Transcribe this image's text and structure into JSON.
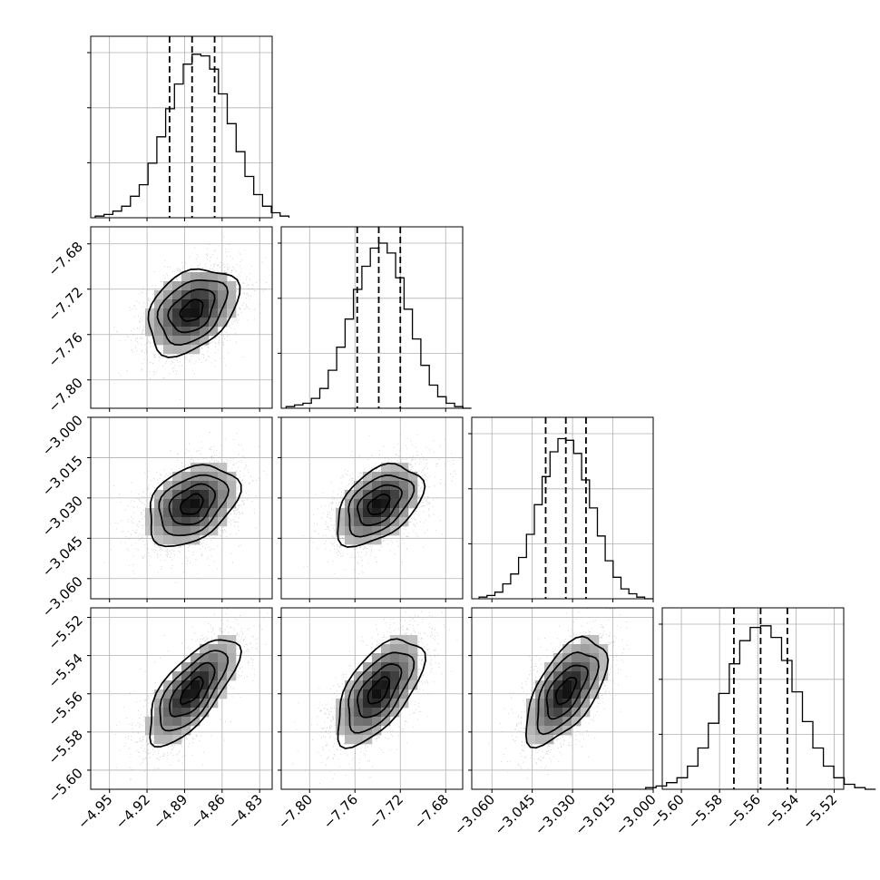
{
  "chart_data": {
    "type": "corner",
    "grid": true,
    "params": [
      {
        "range": [
          -4.965,
          -4.82
        ],
        "ticks": [
          -4.95,
          -4.92,
          -4.89,
          -4.86,
          -4.83
        ],
        "tick_labels": [
          "−4.95",
          "−4.92",
          "−4.89",
          "−4.86",
          "−4.83"
        ],
        "quantiles": [
          -4.902,
          -4.884,
          -4.866
        ],
        "mean": -4.884,
        "sd": 0.018
      },
      {
        "range": [
          -7.825,
          -7.665
        ],
        "ticks": [
          -7.8,
          -7.76,
          -7.72,
          -7.68
        ],
        "tick_labels": [
          "−7.80",
          "−7.76",
          "−7.72",
          "−7.68"
        ],
        "quantiles": [
          -7.758,
          -7.739,
          -7.72
        ],
        "mean": -7.739,
        "sd": 0.019
      },
      {
        "range": [
          -3.0675,
          -3.0
        ],
        "ticks": [
          -3.06,
          -3.045,
          -3.03,
          -3.015,
          -3.0
        ],
        "tick_labels": [
          "−3.060",
          "−3.045",
          "−3.030",
          "−3.015",
          "−3.000"
        ],
        "quantiles": [
          -3.04,
          -3.0325,
          -3.025
        ],
        "mean": -3.0325,
        "sd": 0.0075
      },
      {
        "range": [
          -5.61,
          -5.515
        ],
        "ticks": [
          -5.6,
          -5.58,
          -5.56,
          -5.54,
          -5.52
        ],
        "tick_labels": [
          "−5.60",
          "−5.58",
          "−5.56",
          "−5.54",
          "−5.52"
        ],
        "quantiles": [
          -5.5725,
          -5.5585,
          -5.5445
        ],
        "mean": -5.5585,
        "sd": 0.014
      }
    ],
    "histograms": [
      {
        "param": 0,
        "values": [
          1,
          2,
          4,
          7,
          13,
          20,
          33,
          49,
          66,
          81,
          93,
          99,
          98,
          90,
          75,
          57,
          40,
          25,
          14,
          7,
          3,
          1
        ]
      },
      {
        "param": 1,
        "values": [
          1,
          2,
          3,
          6,
          12,
          23,
          37,
          54,
          72,
          86,
          97,
          100,
          94,
          79,
          60,
          42,
          26,
          14,
          7,
          3,
          1,
          0
        ]
      },
      {
        "param": 2,
        "values": [
          1,
          2,
          4,
          9,
          15,
          25,
          39,
          57,
          74,
          89,
          97,
          96,
          88,
          72,
          55,
          38,
          23,
          13,
          6,
          3,
          1,
          0
        ]
      },
      {
        "param": 3,
        "values": [
          1,
          2,
          4,
          7,
          14,
          25,
          40,
          58,
          76,
          90,
          98,
          99,
          92,
          78,
          59,
          41,
          25,
          14,
          7,
          3,
          1,
          0
        ]
      }
    ],
    "correlations": [
      {
        "x": 0,
        "y": 1,
        "rho": 0.35
      },
      {
        "x": 0,
        "y": 2,
        "rho": 0.35
      },
      {
        "x": 1,
        "y": 2,
        "rho": 0.45
      },
      {
        "x": 0,
        "y": 3,
        "rho": 0.7
      },
      {
        "x": 1,
        "y": 3,
        "rho": 0.6
      },
      {
        "x": 2,
        "y": 3,
        "rho": 0.6
      }
    ],
    "contour_levels_sigma": [
      0.5,
      1.0,
      1.5,
      2.0
    ]
  }
}
